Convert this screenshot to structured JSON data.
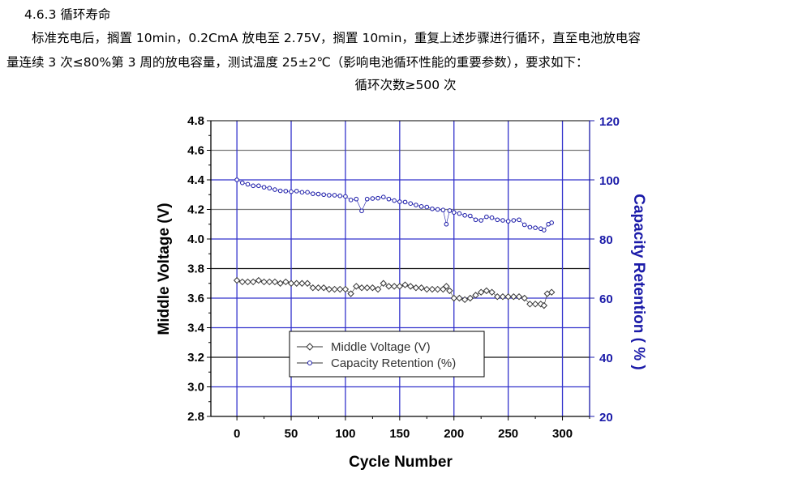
{
  "document": {
    "heading": "4.6.3  循环寿命",
    "paragraph_line1": "标准充电后，搁置 10min，0.2CmA 放电至 2.75V，搁置 10min，重复上述步骤进行循环，直至电池放电容",
    "paragraph_line2": "量连续 3 次≤80%第 3 周的放电容量，测试温度 25±2℃（影响电池循环性能的重要参数），要求如下：",
    "requirement": "循环次数≥500 次"
  },
  "chart_data": {
    "type": "scatter",
    "xlabel": "Cycle Number",
    "ylabel": "Middle Voltage (V)",
    "y2label": "Capacity Retention ( % )",
    "xlim": [
      -24,
      325
    ],
    "ylim": [
      2.8,
      4.8
    ],
    "y2lim": [
      20,
      120
    ],
    "xticks": [
      "0",
      "50",
      "100",
      "150",
      "200",
      "250",
      "300"
    ],
    "yticks": [
      "2.8",
      "3.0",
      "3.2",
      "3.4",
      "3.6",
      "3.8",
      "4.0",
      "4.2",
      "4.4",
      "4.6",
      "4.8"
    ],
    "y2ticks": [
      "20",
      "40",
      "60",
      "80",
      "100",
      "120"
    ],
    "grid": true,
    "legend_position": "bottom-center",
    "colors": {
      "voltage": "#333333",
      "capacity": "#1a1aa8",
      "axis2": "#1a1aa8",
      "grid": "#3333cc"
    },
    "series": [
      {
        "name": "Middle Voltage (V)",
        "axis": "left",
        "marker": "diamond",
        "x": [
          0,
          5,
          10,
          15,
          20,
          25,
          30,
          35,
          40,
          45,
          50,
          55,
          60,
          65,
          70,
          75,
          80,
          85,
          90,
          95,
          100,
          105,
          110,
          115,
          120,
          125,
          130,
          135,
          140,
          145,
          150,
          155,
          160,
          165,
          170,
          175,
          180,
          185,
          190,
          193,
          196,
          200,
          205,
          210,
          215,
          220,
          225,
          230,
          235,
          240,
          245,
          250,
          255,
          260,
          265,
          270,
          275,
          280,
          283,
          286,
          290
        ],
        "y": [
          3.72,
          3.71,
          3.71,
          3.71,
          3.72,
          3.71,
          3.71,
          3.71,
          3.7,
          3.71,
          3.7,
          3.7,
          3.7,
          3.7,
          3.67,
          3.67,
          3.67,
          3.66,
          3.66,
          3.66,
          3.66,
          3.63,
          3.68,
          3.67,
          3.67,
          3.67,
          3.66,
          3.7,
          3.68,
          3.68,
          3.68,
          3.69,
          3.68,
          3.67,
          3.67,
          3.66,
          3.66,
          3.66,
          3.66,
          3.68,
          3.65,
          3.6,
          3.6,
          3.59,
          3.6,
          3.62,
          3.64,
          3.65,
          3.64,
          3.61,
          3.61,
          3.61,
          3.61,
          3.61,
          3.6,
          3.56,
          3.56,
          3.56,
          3.55,
          3.63,
          3.64
        ]
      },
      {
        "name": "Capacity Retention (%)",
        "axis": "right",
        "marker": "circle",
        "x": [
          0,
          5,
          10,
          15,
          20,
          25,
          30,
          35,
          40,
          45,
          50,
          55,
          60,
          65,
          70,
          75,
          80,
          85,
          90,
          95,
          100,
          105,
          110,
          115,
          120,
          125,
          130,
          135,
          140,
          145,
          150,
          155,
          160,
          165,
          170,
          175,
          180,
          185,
          190,
          193,
          196,
          200,
          205,
          210,
          215,
          220,
          225,
          230,
          235,
          240,
          245,
          250,
          255,
          260,
          265,
          270,
          275,
          280,
          283,
          287,
          290
        ],
        "y": [
          100,
          99,
          98.5,
          98,
          98,
          97.5,
          97.2,
          96.7,
          96.3,
          96.2,
          96,
          96.2,
          95.8,
          95.8,
          95.3,
          95.2,
          95,
          94.8,
          94.8,
          94.6,
          94.4,
          93.2,
          93.5,
          89.5,
          93.5,
          93.7,
          93.8,
          94.2,
          93.5,
          93,
          92.6,
          92.5,
          92,
          91.5,
          91,
          90.8,
          90.2,
          90,
          89.8,
          85,
          89.6,
          89,
          88.6,
          88,
          87.8,
          86.5,
          86.3,
          87.5,
          87.2,
          86.5,
          86.3,
          86,
          86.3,
          86.5,
          84.8,
          84,
          83.8,
          83.5,
          83,
          85,
          85.5
        ]
      }
    ]
  }
}
